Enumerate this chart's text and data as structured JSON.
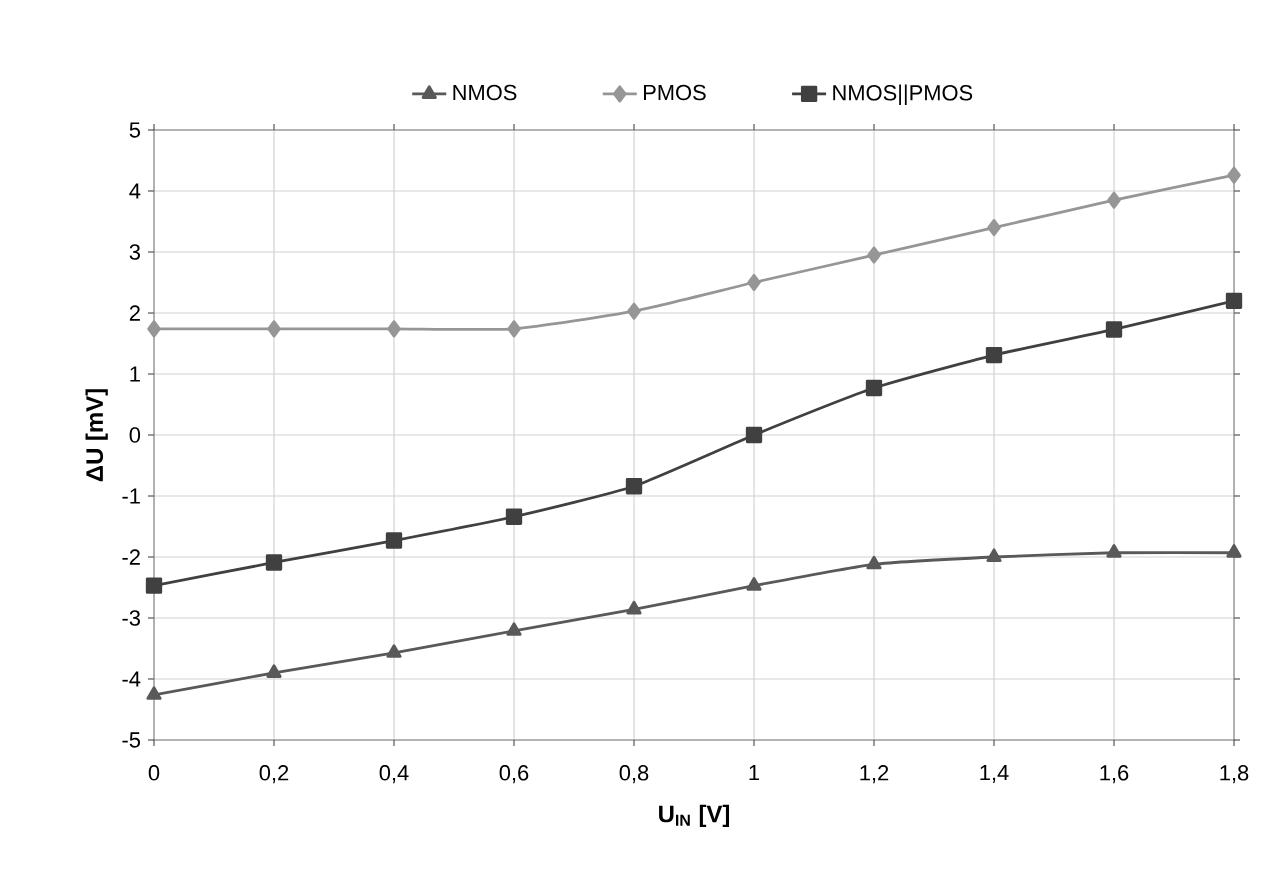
{
  "chart_data": {
    "type": "line",
    "xlabel": "U$_{IN}$ [V]",
    "ylabel": "ΔU [mV]",
    "categories": [
      "0",
      "0,2",
      "0,4",
      "0,6",
      "0,8",
      "1",
      "1,2",
      "1,4",
      "1,6",
      "1,8"
    ],
    "series": [
      {
        "name": "NMOS",
        "color": "#595959",
        "marker": "triangle",
        "values": [
          -4.26,
          -3.9,
          -3.57,
          -3.21,
          -2.86,
          -2.47,
          -2.12,
          -2.0,
          -1.93,
          -1.93
        ]
      },
      {
        "name": "PMOS",
        "color": "#969696",
        "marker": "diamond",
        "values": [
          1.74,
          1.74,
          1.74,
          1.74,
          2.03,
          2.5,
          2.95,
          3.4,
          3.85,
          4.26
        ]
      },
      {
        "name": "NMOS||PMOS",
        "color": "#404040",
        "marker": "square",
        "values": [
          -2.47,
          -2.09,
          -1.73,
          -1.34,
          -0.84,
          0,
          0.77,
          1.31,
          1.73,
          2.2
        ]
      }
    ],
    "ylim": [
      -5,
      5
    ],
    "yticks": [
      -5,
      -4,
      -3,
      -2,
      -1,
      0,
      1,
      2,
      3,
      4,
      5
    ],
    "grid": true,
    "legend": "top"
  }
}
